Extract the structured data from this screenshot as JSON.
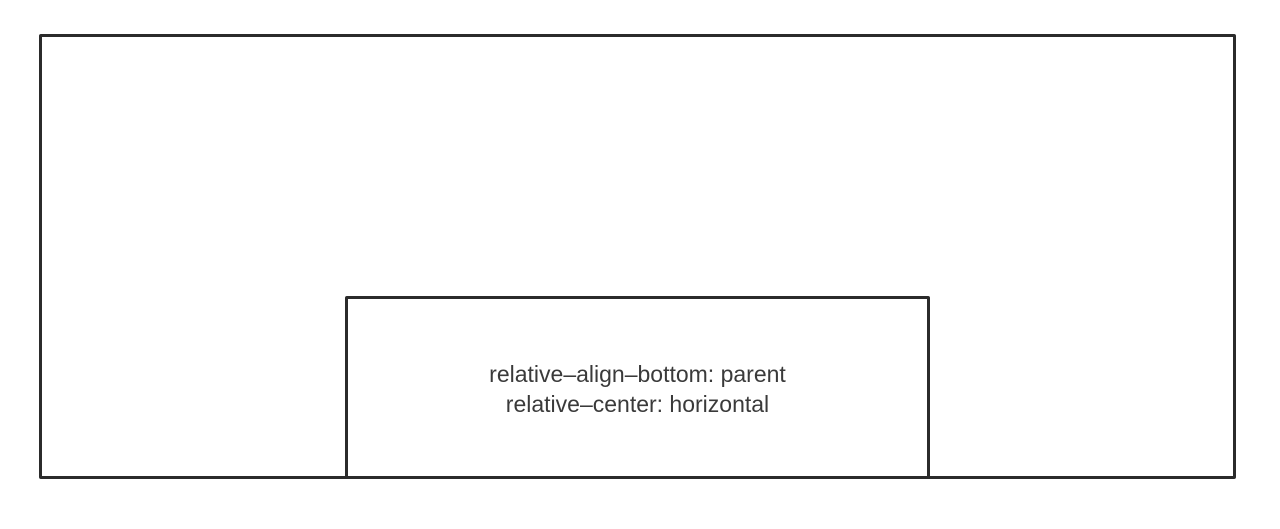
{
  "diagram": {
    "child_label_lines": [
      "relative–align–bottom: parent",
      "relative–center: horizontal"
    ]
  }
}
